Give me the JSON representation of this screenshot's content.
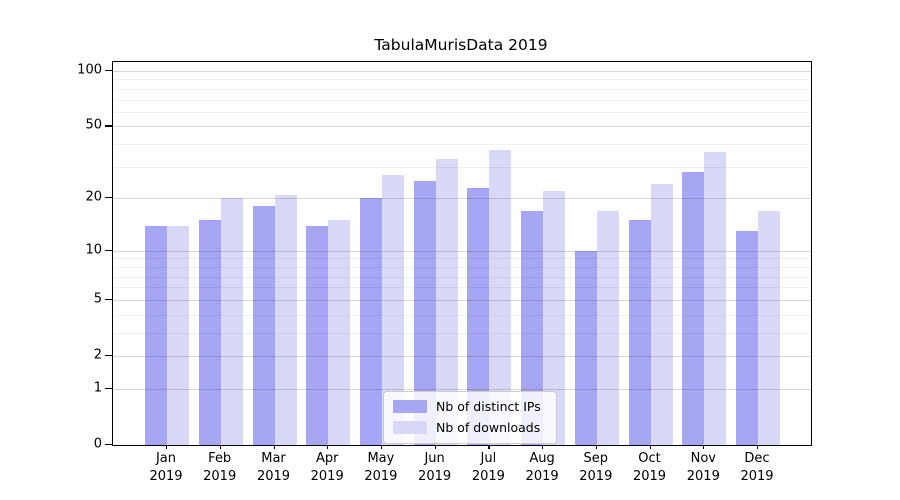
{
  "title": "TabulaMurisData 2019",
  "chart_data": {
    "type": "bar",
    "title": "TabulaMurisData 2019",
    "categories": [
      "Jan",
      "Feb",
      "Mar",
      "Apr",
      "May",
      "Jun",
      "Jul",
      "Aug",
      "Sep",
      "Oct",
      "Nov",
      "Dec"
    ],
    "category_year": "2019",
    "series": [
      {
        "name": "Nb of distinct IPs",
        "color": "#a6a6f4",
        "values": [
          14,
          15,
          18,
          14,
          20,
          25,
          23,
          17,
          10,
          15,
          28,
          13
        ]
      },
      {
        "name": "Nb of downloads",
        "color": "#d9d9f7",
        "values": [
          14,
          20,
          21,
          15,
          27,
          33,
          37,
          22,
          17,
          24,
          36,
          17
        ]
      }
    ],
    "y_axis": {
      "scale": "log1p",
      "range": [
        0,
        100
      ],
      "major_ticks": [
        0,
        1,
        2,
        5,
        10,
        20,
        50,
        100
      ],
      "minor_ticks": [
        3,
        4,
        6,
        7,
        8,
        9,
        30,
        40,
        60,
        70,
        80,
        90
      ]
    },
    "grid": true,
    "legend": {
      "position": "lower center",
      "entries": [
        "Nb of distinct IPs",
        "Nb of downloads"
      ]
    }
  },
  "colors": {
    "bar_distinct_ips": "#a6a6f4",
    "bar_downloads": "#d9d9f7",
    "spine": "#000000",
    "grid_major": "#d9d9d9",
    "grid_minor": "#f1f1f1",
    "legend_border": "#cccccc"
  }
}
